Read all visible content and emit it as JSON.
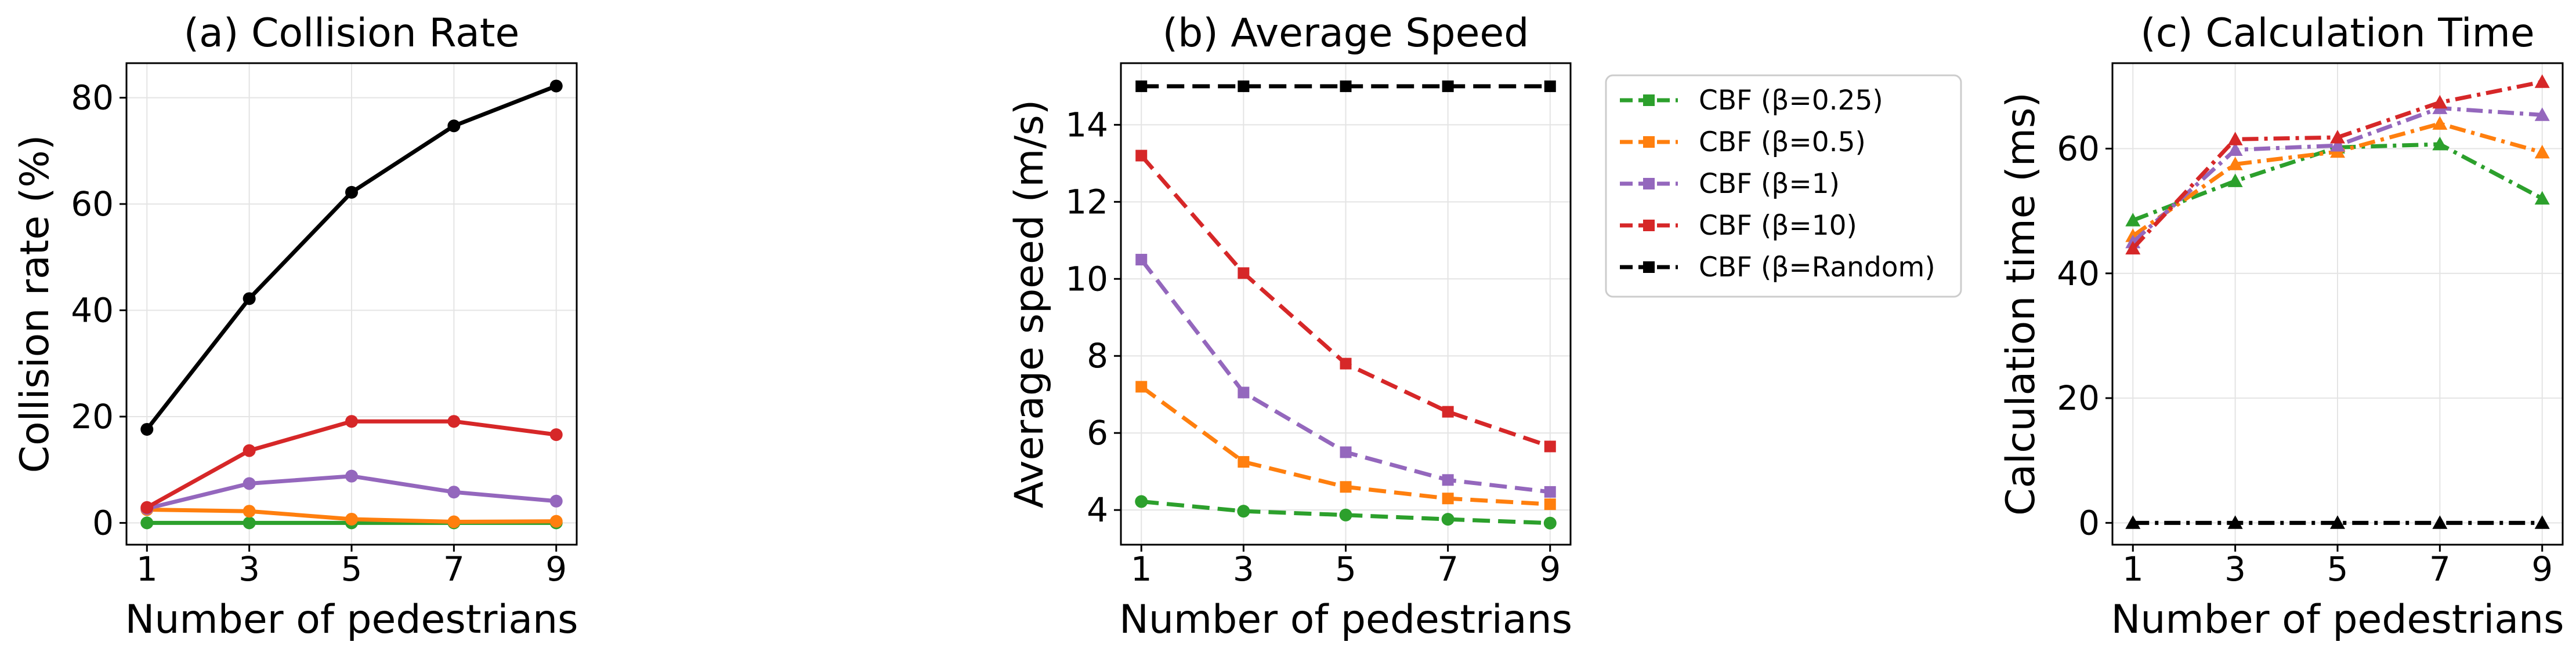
{
  "chart_data": [
    {
      "type": "line",
      "title": "(a) Collision Rate",
      "xlabel": "Number of pedestrians",
      "ylabel": "Collision rate (%)",
      "x": [
        1,
        3,
        5,
        7,
        9
      ],
      "xticks": [
        1,
        3,
        5,
        7,
        9
      ],
      "xlim": [
        0.6,
        9.4
      ],
      "yticks": [
        0,
        20,
        40,
        60,
        80
      ],
      "ylim": [
        -4.1,
        86.5
      ],
      "grid": true,
      "series": [
        {
          "color": "#2ca02c",
          "style": "solid",
          "marker": "circle",
          "values": [
            0.0,
            0.0,
            0.0,
            0.0,
            0.0
          ]
        },
        {
          "color": "#ff7f0e",
          "style": "solid",
          "marker": "circle",
          "values": [
            2.5,
            2.2,
            0.7,
            0.2,
            0.3
          ]
        },
        {
          "color": "#9467bd",
          "style": "solid",
          "marker": "circle",
          "values": [
            2.7,
            7.4,
            8.8,
            5.8,
            4.1
          ]
        },
        {
          "color": "#d62728",
          "style": "solid",
          "marker": "circle",
          "values": [
            2.9,
            13.6,
            19.1,
            19.1,
            16.6
          ]
        },
        {
          "color": "#000000",
          "style": "solid",
          "marker": "circle",
          "values": [
            17.6,
            42.2,
            62.2,
            74.7,
            82.2
          ]
        }
      ]
    },
    {
      "type": "line",
      "title": "(b) Average Speed",
      "xlabel": "Number of pedestrians",
      "ylabel": "Average speed (m/s)",
      "x": [
        1,
        3,
        5,
        7,
        9
      ],
      "xticks": [
        1,
        3,
        5,
        7,
        9
      ],
      "xlim": [
        0.6,
        9.4
      ],
      "yticks": [
        4,
        6,
        8,
        10,
        12,
        14
      ],
      "ylim": [
        3.1,
        15.6
      ],
      "grid": true,
      "legend_position": "outside-right",
      "series": [
        {
          "name": "CBF (β=0.25)",
          "color": "#2ca02c",
          "style": "dashed",
          "marker": "circle",
          "values": [
            4.22,
            3.97,
            3.87,
            3.76,
            3.66
          ]
        },
        {
          "name": "CBF (β=0.5)",
          "color": "#ff7f0e",
          "style": "dashed",
          "marker": "square",
          "values": [
            7.2,
            5.25,
            4.6,
            4.3,
            4.15
          ]
        },
        {
          "name": "CBF (β=1)",
          "color": "#9467bd",
          "style": "dashed",
          "marker": "square",
          "values": [
            10.5,
            7.05,
            5.5,
            4.78,
            4.47
          ]
        },
        {
          "name": "CBF (β=10)",
          "color": "#d62728",
          "style": "dashed",
          "marker": "square",
          "values": [
            13.2,
            10.15,
            7.8,
            6.55,
            5.65
          ]
        },
        {
          "name": "CBF (β=Random)",
          "color": "#000000",
          "style": "dashed",
          "marker": "square",
          "values": [
            15.0,
            15.0,
            15.0,
            15.0,
            15.0
          ]
        }
      ]
    },
    {
      "type": "line",
      "title": "(c) Calculation Time",
      "xlabel": "Number of pedestrians",
      "ylabel": "Calculation time (ms)",
      "x": [
        1,
        3,
        5,
        7,
        9
      ],
      "xticks": [
        1,
        3,
        5,
        7,
        9
      ],
      "xlim": [
        0.6,
        9.4
      ],
      "yticks": [
        0,
        20,
        40,
        60
      ],
      "ylim": [
        -3.5,
        73.7
      ],
      "grid": true,
      "series": [
        {
          "color": "#2ca02c",
          "style": "dashdot",
          "marker": "triangle",
          "values": [
            48.5,
            54.8,
            60.2,
            60.7,
            52.0
          ]
        },
        {
          "color": "#ff7f0e",
          "style": "dashdot",
          "marker": "triangle",
          "values": [
            46.0,
            57.5,
            59.5,
            64.0,
            59.4
          ]
        },
        {
          "color": "#9467bd",
          "style": "dashdot",
          "marker": "triangle",
          "values": [
            45.0,
            59.8,
            60.5,
            66.5,
            65.4
          ]
        },
        {
          "color": "#d62728",
          "style": "dashdot",
          "marker": "triangle",
          "values": [
            44.0,
            61.5,
            61.8,
            67.4,
            70.7
          ]
        },
        {
          "color": "#000000",
          "style": "dashdot",
          "marker": "triangle",
          "values": [
            0.0,
            0.0,
            0.0,
            0.0,
            0.0
          ]
        }
      ]
    }
  ]
}
